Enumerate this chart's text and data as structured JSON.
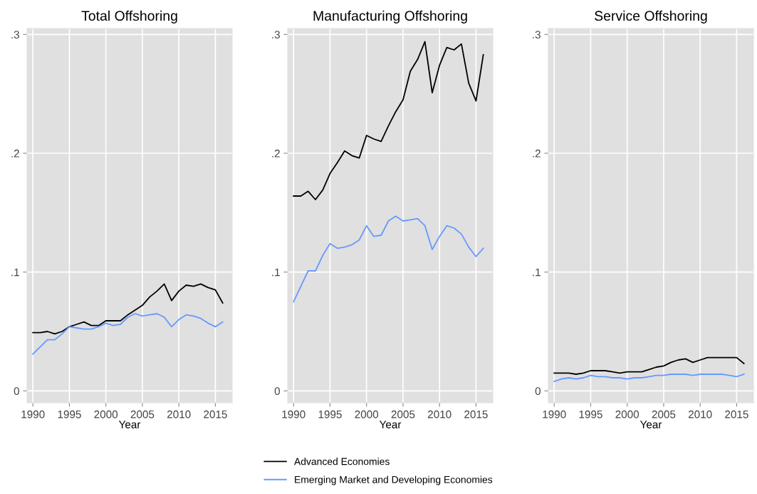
{
  "chart_data": [
    {
      "type": "line",
      "title": "Total Offshoring",
      "xlabel": "Year",
      "x": [
        1990,
        1991,
        1992,
        1993,
        1994,
        1995,
        1996,
        1997,
        1998,
        1999,
        2000,
        2001,
        2002,
        2003,
        2004,
        2005,
        2006,
        2007,
        2008,
        2009,
        2010,
        2011,
        2012,
        2013,
        2014,
        2015,
        2016
      ],
      "series": [
        {
          "name": "Advanced Economies",
          "color": "#000000",
          "values": [
            0.049,
            0.049,
            0.05,
            0.048,
            0.05,
            0.054,
            0.056,
            0.058,
            0.055,
            0.055,
            0.059,
            0.059,
            0.059,
            0.064,
            0.068,
            0.072,
            0.079,
            0.084,
            0.09,
            0.076,
            0.084,
            0.089,
            0.088,
            0.09,
            0.087,
            0.085,
            0.074
          ]
        },
        {
          "name": "Emerging Market and Developing Economies",
          "color": "#6699ff",
          "values": [
            0.031,
            0.037,
            0.043,
            0.043,
            0.048,
            0.054,
            0.053,
            0.052,
            0.052,
            0.054,
            0.057,
            0.055,
            0.056,
            0.062,
            0.065,
            0.063,
            0.064,
            0.065,
            0.062,
            0.054,
            0.06,
            0.064,
            0.063,
            0.061,
            0.057,
            0.054,
            0.058
          ]
        }
      ],
      "xlim": [
        1989.2,
        2017.3
      ],
      "ylim": [
        -0.01,
        0.305
      ],
      "xticks": [
        1990,
        1995,
        2000,
        2005,
        2010,
        2015
      ],
      "yticks": [
        0,
        {
          "value": 0.1,
          "label": ".1"
        },
        {
          "value": 0.2,
          "label": ".2"
        },
        {
          "value": 0.3,
          "label": ".3"
        }
      ],
      "grid": true,
      "legend": "bottom"
    },
    {
      "type": "line",
      "title": "Manufacturing Offshoring",
      "xlabel": "Year",
      "x": [
        1990,
        1991,
        1992,
        1993,
        1994,
        1995,
        1996,
        1997,
        1998,
        1999,
        2000,
        2001,
        2002,
        2003,
        2004,
        2005,
        2006,
        2007,
        2008,
        2009,
        2010,
        2011,
        2012,
        2013,
        2014,
        2015,
        2016
      ],
      "series": [
        {
          "name": "Advanced Economies",
          "color": "#000000",
          "values": [
            0.164,
            0.164,
            0.168,
            0.161,
            0.169,
            0.183,
            0.192,
            0.202,
            0.198,
            0.196,
            0.215,
            0.212,
            0.21,
            0.223,
            0.235,
            0.245,
            0.269,
            0.279,
            0.294,
            0.251,
            0.274,
            0.289,
            0.287,
            0.292,
            0.259,
            0.244,
            0.283
          ]
        },
        {
          "name": "Emerging Market and Developing Economies",
          "color": "#6699ff",
          "values": [
            0.075,
            0.088,
            0.101,
            0.101,
            0.114,
            0.124,
            0.12,
            0.121,
            0.123,
            0.127,
            0.139,
            0.13,
            0.131,
            0.143,
            0.147,
            0.143,
            0.144,
            0.145,
            0.139,
            0.119,
            0.13,
            0.139,
            0.137,
            0.132,
            0.121,
            0.113,
            0.12
          ]
        }
      ],
      "xlim": [
        1989.2,
        2017.3
      ],
      "ylim": [
        -0.01,
        0.305
      ],
      "xticks": [
        1990,
        1995,
        2000,
        2005,
        2010,
        2015
      ],
      "yticks": [
        0,
        {
          "value": 0.1,
          "label": ".1"
        },
        {
          "value": 0.2,
          "label": ".2"
        },
        {
          "value": 0.3,
          "label": ".3"
        }
      ],
      "grid": true
    },
    {
      "type": "line",
      "title": "Service Offshoring",
      "xlabel": "Year",
      "x": [
        1990,
        1991,
        1992,
        1993,
        1994,
        1995,
        1996,
        1997,
        1998,
        1999,
        2000,
        2001,
        2002,
        2003,
        2004,
        2005,
        2006,
        2007,
        2008,
        2009,
        2010,
        2011,
        2012,
        2013,
        2014,
        2015,
        2016
      ],
      "series": [
        {
          "name": "Advanced Economies",
          "color": "#000000",
          "values": [
            0.015,
            0.015,
            0.015,
            0.014,
            0.015,
            0.017,
            0.017,
            0.017,
            0.016,
            0.015,
            0.016,
            0.016,
            0.016,
            0.018,
            0.02,
            0.021,
            0.024,
            0.026,
            0.027,
            0.024,
            0.026,
            0.028,
            0.028,
            0.028,
            0.028,
            0.028,
            0.023
          ]
        },
        {
          "name": "Emerging Market and Developing Economies",
          "color": "#6699ff",
          "values": [
            0.008,
            0.01,
            0.011,
            0.01,
            0.011,
            0.013,
            0.012,
            0.012,
            0.011,
            0.011,
            0.01,
            0.011,
            0.011,
            0.012,
            0.013,
            0.013,
            0.014,
            0.014,
            0.014,
            0.013,
            0.014,
            0.014,
            0.014,
            0.014,
            0.013,
            0.012,
            0.014
          ]
        }
      ],
      "xlim": [
        1989.2,
        2017.3
      ],
      "ylim": [
        -0.01,
        0.305
      ],
      "xticks": [
        1990,
        1995,
        2000,
        2005,
        2010,
        2015
      ],
      "yticks": [
        0,
        {
          "value": 0.1,
          "label": ".1"
        },
        {
          "value": 0.2,
          "label": ".2"
        },
        {
          "value": 0.3,
          "label": ".3"
        }
      ],
      "grid": true
    }
  ]
}
